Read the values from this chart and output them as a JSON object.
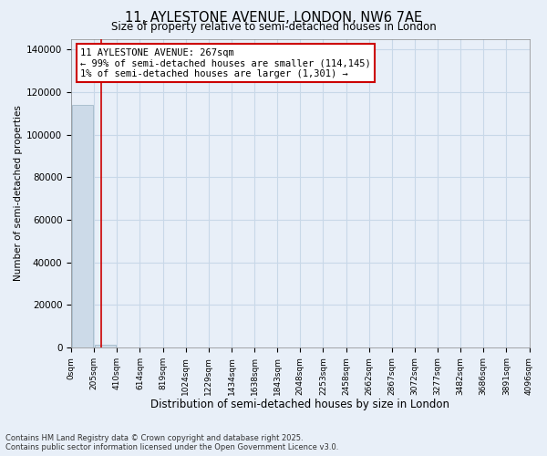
{
  "title": "11, AYLESTONE AVENUE, LONDON, NW6 7AE",
  "subtitle": "Size of property relative to semi-detached houses in London",
  "xlabel": "Distribution of semi-detached houses by size in London",
  "ylabel": "Number of semi-detached properties",
  "bin_edges": [
    0,
    205,
    410,
    614,
    819,
    1024,
    1229,
    1434,
    1638,
    1843,
    2048,
    2253,
    2458,
    2662,
    2867,
    3072,
    3277,
    3482,
    3686,
    3891,
    4096
  ],
  "bar_heights": [
    114145,
    1301,
    0,
    0,
    0,
    0,
    0,
    0,
    0,
    0,
    0,
    0,
    0,
    0,
    0,
    0,
    0,
    0,
    0,
    0
  ],
  "property_size": 267,
  "smaller_count": 114145,
  "larger_count": 1301,
  "bar_color": "#ccdae8",
  "bar_edge_color": "#aabfcf",
  "red_line_color": "#cc0000",
  "annotation_line1": "11 AYLESTONE AVENUE: 267sqm",
  "annotation_line2": "← 99% of semi-detached houses are smaller (114,145)",
  "annotation_line3": "1% of semi-detached houses are larger (1,301) →",
  "annotation_box_color": "#ffffff",
  "annotation_box_edge": "#cc0000",
  "grid_color": "#c8d8e8",
  "background_color": "#e8eff8",
  "footer_text": "Contains HM Land Registry data © Crown copyright and database right 2025.\nContains public sector information licensed under the Open Government Licence v3.0.",
  "ylim": [
    0,
    145000
  ],
  "yticks": [
    0,
    20000,
    40000,
    60000,
    80000,
    100000,
    120000,
    140000
  ]
}
